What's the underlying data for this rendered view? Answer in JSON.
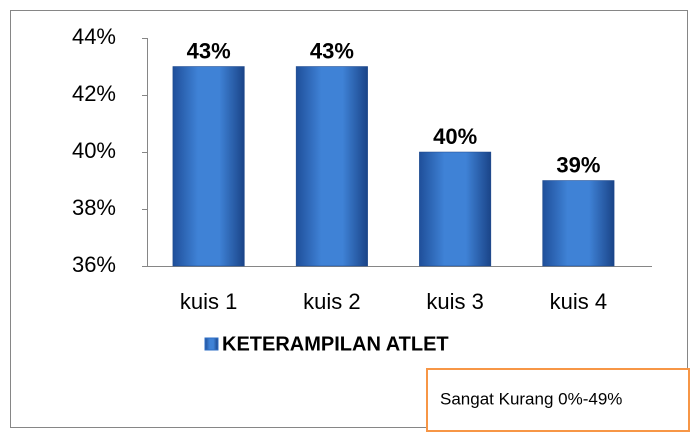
{
  "chart_data": {
    "type": "bar",
    "categories": [
      "kuis 1",
      "kuis 2",
      "kuis 3",
      "kuis 4"
    ],
    "series": [
      {
        "name": "KETERAMPILAN ATLET",
        "color": "#2f6fc6",
        "values": [
          43,
          43,
          40,
          39
        ],
        "value_labels": [
          "43%",
          "43%",
          "40%",
          "39%"
        ]
      }
    ],
    "ylim": [
      36,
      44
    ],
    "yticks": [
      {
        "value": 36,
        "label": "36%"
      },
      {
        "value": 38,
        "label": "38%"
      },
      {
        "value": 40,
        "label": "40%"
      },
      {
        "value": 42,
        "label": "42%"
      },
      {
        "value": 44,
        "label": "44%"
      }
    ],
    "legend": "bottom",
    "annotation": "Sangat Kurang 0%-49%"
  }
}
